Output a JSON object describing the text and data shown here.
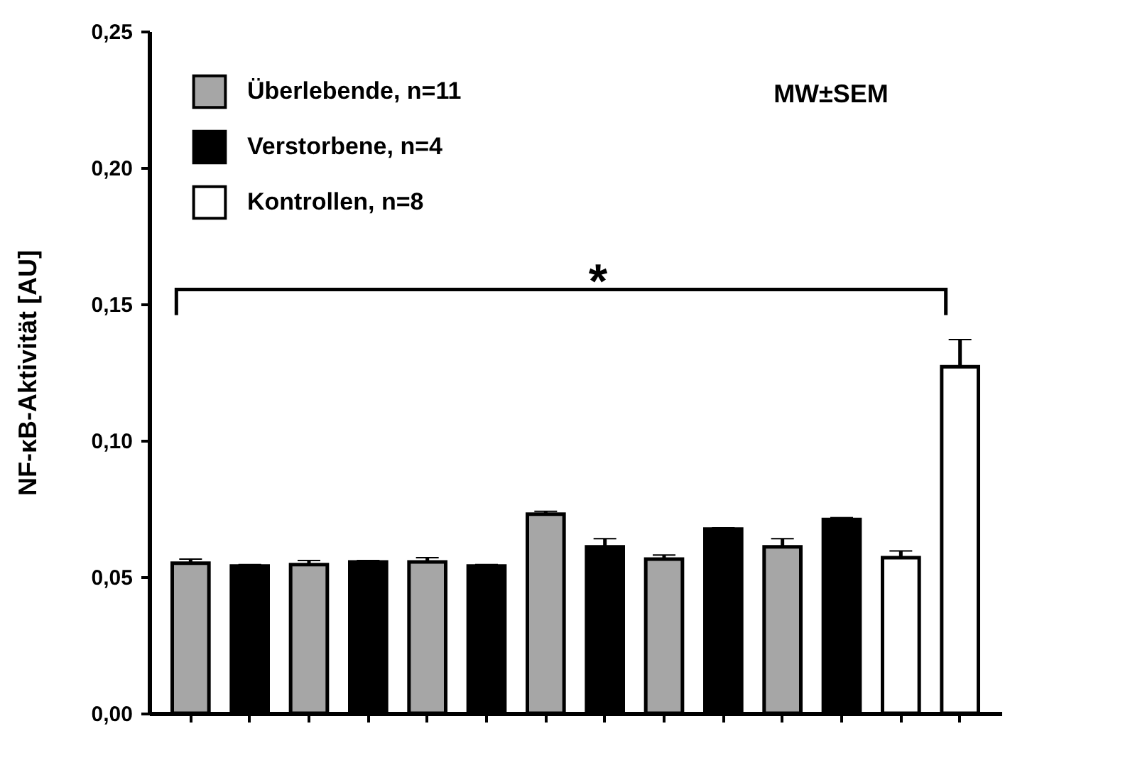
{
  "chart_data": {
    "type": "bar",
    "ylabel": "NF-κB-Aktivität [AU]",
    "categories": [
      null,
      null,
      null,
      null,
      null,
      null,
      null,
      null,
      null,
      null,
      null,
      null,
      null,
      null
    ],
    "series": [
      {
        "name": "Überlebende, n=11",
        "color": "#a6a6a6",
        "values": [
          0.055,
          null,
          0.0545,
          null,
          0.0555,
          null,
          0.073,
          null,
          0.0565,
          null,
          0.061,
          null,
          null,
          null
        ],
        "errors": [
          0.0015,
          null,
          0.0015,
          null,
          0.0015,
          null,
          0.001,
          null,
          0.0015,
          null,
          0.003,
          null,
          null,
          null
        ]
      },
      {
        "name": "Verstorbene, n=4",
        "color": "#000000",
        "values": [
          null,
          0.054,
          null,
          0.0555,
          null,
          0.054,
          null,
          0.061,
          null,
          0.0675,
          null,
          0.071,
          null,
          null
        ],
        "errors": [
          null,
          0.0005,
          null,
          0.0005,
          null,
          0.0005,
          null,
          0.003,
          null,
          0.0005,
          null,
          0.0007,
          null,
          null
        ]
      },
      {
        "name": "Kontrollen, n=8",
        "color": "#ffffff",
        "values": [
          null,
          null,
          null,
          null,
          null,
          null,
          null,
          null,
          null,
          null,
          null,
          null,
          0.057,
          0.127
        ],
        "errors": [
          null,
          null,
          null,
          null,
          null,
          null,
          null,
          null,
          null,
          null,
          null,
          null,
          0.0025,
          0.01
        ]
      }
    ],
    "ylim": [
      0,
      0.25
    ],
    "yticks": [
      {
        "value": 0,
        "label": "0,00"
      },
      {
        "value": 0.05,
        "label": "0,05"
      },
      {
        "value": 0.1,
        "label": "0,10"
      },
      {
        "value": 0.15,
        "label": "0,15"
      },
      {
        "value": 0.2,
        "label": "0,20"
      },
      {
        "value": 0.25,
        "label": "0,25"
      }
    ],
    "tick_labels": "y",
    "grid": false,
    "legend": "top left",
    "annotations": [
      "MW±SEM",
      "*"
    ]
  }
}
